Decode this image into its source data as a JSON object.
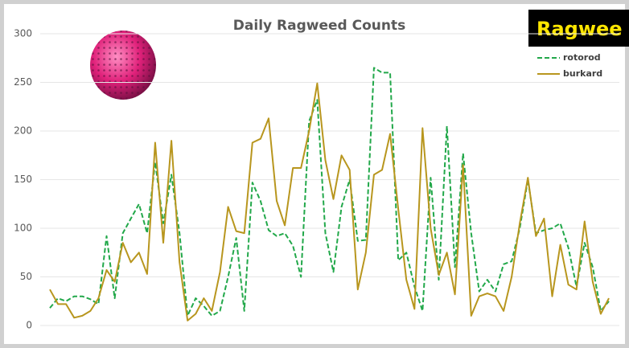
{
  "chart_data": {
    "type": "line",
    "title": "Daily Ragweed Counts",
    "badge": "Ragwee",
    "categories": [
      null,
      null,
      null,
      null,
      null,
      null,
      null,
      null,
      null,
      null,
      null,
      null,
      null,
      null,
      null,
      null,
      null,
      null,
      null,
      null,
      null,
      null,
      null,
      null,
      null,
      null,
      null,
      null,
      null,
      null,
      null,
      null,
      null,
      null,
      null,
      null,
      null,
      null,
      null,
      null,
      null,
      null,
      null,
      null,
      null,
      null,
      null,
      null,
      null,
      null,
      null,
      null,
      null,
      null,
      null,
      null,
      null,
      null,
      null,
      null,
      null,
      null,
      null,
      null,
      null,
      null,
      null,
      null,
      null,
      null
    ],
    "series": [
      {
        "name": "rotorod",
        "color": "#22a84a",
        "dashed": true,
        "values": [
          18,
          28,
          25,
          30,
          30,
          27,
          22,
          92,
          28,
          95,
          110,
          125,
          95,
          168,
          105,
          155,
          95,
          10,
          28,
          20,
          10,
          15,
          50,
          90,
          15,
          147,
          128,
          98,
          92,
          95,
          82,
          50,
          210,
          232,
          95,
          55,
          122,
          150,
          87,
          88,
          265,
          260,
          260,
          67,
          75,
          40,
          15,
          152,
          47,
          205,
          60,
          177,
          95,
          35,
          47,
          35,
          63,
          66,
          100,
          150,
          95,
          98,
          100,
          105,
          80,
          40,
          85,
          60,
          15,
          25
        ]
      },
      {
        "name": "burkard",
        "color": "#b8961e",
        "dashed": false,
        "values": [
          37,
          22,
          22,
          8,
          10,
          15,
          28,
          57,
          45,
          85,
          65,
          75,
          53,
          188,
          85,
          190,
          65,
          5,
          12,
          28,
          15,
          55,
          122,
          97,
          95,
          188,
          192,
          213,
          128,
          103,
          162,
          162,
          200,
          249,
          170,
          130,
          175,
          160,
          37,
          75,
          155,
          160,
          197,
          120,
          47,
          17,
          203,
          100,
          52,
          75,
          32,
          165,
          10,
          30,
          33,
          30,
          15,
          50,
          105,
          152,
          92,
          110,
          30,
          83,
          42,
          37,
          107,
          45,
          12,
          28
        ]
      }
    ],
    "ylim": [
      0,
      300
    ],
    "yticks": [
      0,
      50,
      100,
      150,
      200,
      250,
      300
    ],
    "grid": true,
    "legend": "top-right"
  }
}
